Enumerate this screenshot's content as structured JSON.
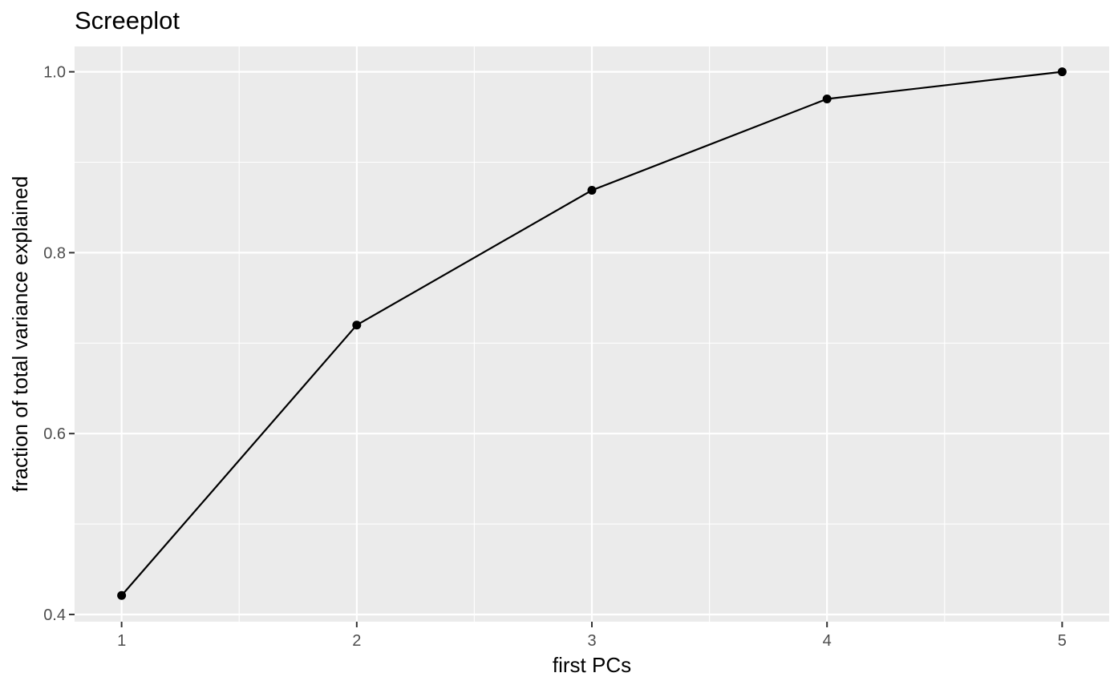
{
  "chart_data": {
    "type": "line",
    "title": "Screeplot",
    "xlabel": "first PCs",
    "ylabel": "fraction of total variance explained",
    "x": [
      1,
      2,
      3,
      4,
      5
    ],
    "series": [
      {
        "values": [
          0.421,
          0.72,
          0.869,
          0.97,
          1.0
        ]
      }
    ],
    "x_ticks": [
      "1",
      "2",
      "3",
      "4",
      "5"
    ],
    "y_ticks": [
      "0.4",
      "0.6",
      "0.8",
      "1.0"
    ],
    "xlim": [
      0.8,
      5.2
    ],
    "ylim": [
      0.392,
      1.028
    ],
    "grid": true,
    "panel_background": "#EBEBEB",
    "grid_color": "#FFFFFF",
    "line_color": "#000000",
    "point_color": "#000000"
  }
}
